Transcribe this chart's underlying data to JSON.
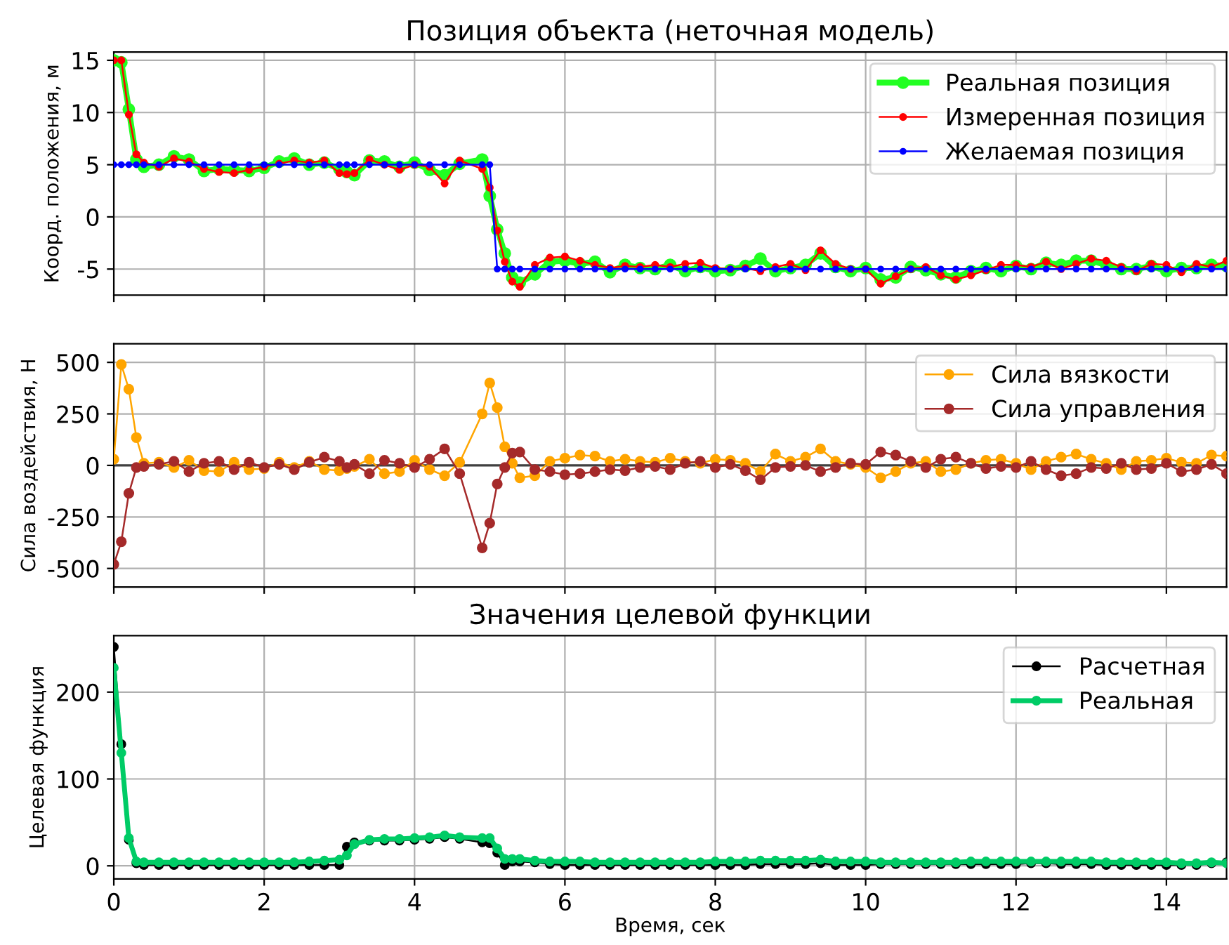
{
  "chart_data": [
    {
      "type": "line",
      "title": "Позиция объекта (неточная модель)",
      "ylabel": "Коорд. положения, м",
      "x": [
        0,
        0.1,
        0.2,
        0.3,
        0.4,
        0.6,
        0.8,
        1.0,
        1.2,
        1.4,
        1.6,
        1.8,
        2.0,
        2.2,
        2.4,
        2.6,
        2.8,
        3.0,
        3.1,
        3.2,
        3.4,
        3.6,
        3.8,
        4.0,
        4.2,
        4.4,
        4.6,
        4.9,
        5.0,
        5.1,
        5.2,
        5.3,
        5.4,
        5.6,
        5.8,
        6.0,
        6.2,
        6.4,
        6.6,
        6.8,
        7.0,
        7.2,
        7.4,
        7.6,
        7.8,
        8.0,
        8.2,
        8.4,
        8.6,
        8.8,
        9.0,
        9.2,
        9.4,
        9.6,
        9.8,
        10.0,
        10.2,
        10.4,
        10.6,
        10.8,
        11.0,
        11.2,
        11.4,
        11.6,
        11.8,
        12.0,
        12.2,
        12.4,
        12.6,
        12.8,
        13.0,
        13.2,
        13.4,
        13.6,
        13.8,
        14.0,
        14.2,
        14.4,
        14.6,
        14.8
      ],
      "series": [
        {
          "name": "Реальная позиция",
          "color": "#22ff22",
          "values": [
            15,
            14.8,
            10.3,
            5.5,
            4.8,
            5.0,
            5.8,
            5.5,
            4.4,
            4.6,
            4.5,
            4.4,
            4.7,
            5.3,
            5.6,
            5.0,
            5.2,
            4.6,
            4.3,
            4.0,
            5.4,
            5.3,
            4.8,
            5.2,
            4.5,
            4.0,
            5.1,
            5.5,
            2.0,
            -1.2,
            -3.5,
            -5.8,
            -6.3,
            -5.5,
            -4.3,
            -4.2,
            -4.5,
            -4.3,
            -5.3,
            -4.6,
            -4.9,
            -5.0,
            -4.6,
            -5.2,
            -4.8,
            -5.2,
            -5.1,
            -4.7,
            -4.0,
            -5.2,
            -4.9,
            -4.6,
            -3.5,
            -4.8,
            -5.2,
            -4.9,
            -6.0,
            -5.8,
            -4.8,
            -5.1,
            -5.5,
            -5.8,
            -5.2,
            -4.9,
            -5.2,
            -4.7,
            -5.0,
            -4.4,
            -4.6,
            -4.2,
            -4.2,
            -4.6,
            -5.0,
            -5.0,
            -4.7,
            -5.2,
            -4.9,
            -4.9,
            -4.6,
            -4.7
          ]
        },
        {
          "name": "Измеренная позиция",
          "color": "#ff0000",
          "values": [
            15,
            15,
            9.8,
            6,
            5.2,
            4.8,
            5.6,
            5.3,
            4.6,
            4.3,
            4.2,
            4.5,
            4.8,
            5.1,
            5.4,
            5.2,
            5.4,
            4.2,
            4.1,
            4.2,
            5.5,
            5.0,
            4.5,
            5.0,
            4.8,
            3.2,
            5.4,
            4.6,
            2.8,
            -1.3,
            -4.3,
            -6.2,
            -6.7,
            -4.6,
            -3.9,
            -3.8,
            -4.2,
            -4.6,
            -4.9,
            -4.7,
            -4.8,
            -4.6,
            -4.8,
            -4.5,
            -4.4,
            -4.9,
            -5.0,
            -4.9,
            -5.2,
            -4.8,
            -4.5,
            -5.1,
            -3.2,
            -4.5,
            -5.0,
            -5.0,
            -6.4,
            -5.7,
            -5.0,
            -4.8,
            -5.6,
            -6.0,
            -5.6,
            -5.1,
            -4.6,
            -4.6,
            -4.8,
            -4.3,
            -5.0,
            -4.5,
            -4.0,
            -4.2,
            -4.8,
            -5.2,
            -4.5,
            -4.6,
            -5.3,
            -4.5,
            -4.8,
            -4.2
          ]
        },
        {
          "name": "Желаемая позиция",
          "color": "#0000ff",
          "values": [
            5,
            5,
            5,
            5,
            5,
            5,
            5,
            5,
            5,
            5,
            5,
            5,
            5,
            5,
            5,
            5,
            5,
            5,
            5,
            5,
            5,
            5,
            5,
            5,
            5,
            5,
            5,
            5,
            5,
            -5,
            -5,
            -5,
            -5,
            -5,
            -5,
            -5,
            -5,
            -5,
            -5,
            -5,
            -5,
            -5,
            -5,
            -5,
            -5,
            -5,
            -5,
            -5,
            -5,
            -5,
            -5,
            -5,
            -5,
            -5,
            -5,
            -5,
            -5,
            -5,
            -5,
            -5,
            -5,
            -5,
            -5,
            -5,
            -5,
            -5,
            -5,
            -5,
            -5,
            -5,
            -5,
            -5,
            -5,
            -5,
            -5,
            -5,
            -5,
            -5,
            -5,
            -5
          ]
        }
      ],
      "xlim": [
        0,
        14.8
      ],
      "xticks": [
        0,
        2,
        4,
        6,
        8,
        10,
        12,
        14
      ],
      "ylim": [
        -7.5,
        15.8
      ],
      "yticks": [
        -5,
        0,
        5,
        10,
        15
      ],
      "tick_labels": "y",
      "grid": true,
      "legend": "top right",
      "marker": "circle",
      "line_style": "solid"
    },
    {
      "type": "line",
      "ylabel": "Сила воздействия, Н",
      "x": [
        0,
        0.1,
        0.2,
        0.3,
        0.4,
        0.6,
        0.8,
        1.0,
        1.2,
        1.4,
        1.6,
        1.8,
        2.0,
        2.2,
        2.4,
        2.6,
        2.8,
        3.0,
        3.1,
        3.2,
        3.4,
        3.6,
        3.8,
        4.0,
        4.2,
        4.4,
        4.6,
        4.9,
        5.0,
        5.1,
        5.2,
        5.3,
        5.4,
        5.6,
        5.8,
        6.0,
        6.2,
        6.4,
        6.6,
        6.8,
        7.0,
        7.2,
        7.4,
        7.6,
        7.8,
        8.0,
        8.2,
        8.4,
        8.6,
        8.8,
        9.0,
        9.2,
        9.4,
        9.6,
        9.8,
        10.0,
        10.2,
        10.4,
        10.6,
        10.8,
        11.0,
        11.2,
        11.4,
        11.6,
        11.8,
        12.0,
        12.2,
        12.4,
        12.6,
        12.8,
        13.0,
        13.2,
        13.4,
        13.6,
        13.8,
        14.0,
        14.2,
        14.4,
        14.6,
        14.8
      ],
      "series": [
        {
          "name": "Сила вязкости",
          "color": "#ffa500",
          "values": [
            30,
            490,
            370,
            135,
            10,
            15,
            -10,
            25,
            -25,
            -30,
            15,
            -20,
            -15,
            15,
            -10,
            20,
            -20,
            -25,
            -15,
            -5,
            30,
            -40,
            -30,
            25,
            -20,
            -50,
            15,
            250,
            400,
            280,
            90,
            10,
            -60,
            -50,
            20,
            35,
            50,
            45,
            20,
            30,
            20,
            15,
            35,
            20,
            10,
            30,
            25,
            10,
            -30,
            55,
            20,
            40,
            80,
            20,
            5,
            -10,
            -60,
            -30,
            10,
            20,
            -30,
            -20,
            10,
            25,
            30,
            10,
            -20,
            20,
            40,
            55,
            30,
            10,
            -20,
            20,
            25,
            35,
            15,
            10,
            50,
            45
          ]
        },
        {
          "name": "Сила управления",
          "color": "#a52a2a",
          "values": [
            -480,
            -370,
            -135,
            -10,
            -5,
            5,
            20,
            -30,
            10,
            20,
            -20,
            15,
            -10,
            5,
            -20,
            15,
            40,
            20,
            -10,
            5,
            -40,
            25,
            10,
            -10,
            30,
            80,
            -40,
            -400,
            -280,
            -90,
            -10,
            60,
            65,
            -20,
            -30,
            -45,
            -40,
            -30,
            -20,
            -25,
            -10,
            -5,
            -20,
            10,
            20,
            -10,
            5,
            -25,
            -70,
            -10,
            -5,
            0,
            -30,
            -10,
            10,
            5,
            65,
            50,
            20,
            -10,
            30,
            40,
            10,
            -15,
            -5,
            -10,
            20,
            -20,
            -50,
            -40,
            -10,
            -15,
            10,
            -20,
            -15,
            10,
            -30,
            -20,
            5,
            -40
          ]
        }
      ],
      "ref_lines": [
        {
          "axis": "y",
          "value": 0,
          "color": "#404040"
        }
      ],
      "xlim": [
        0,
        14.8
      ],
      "xticks": [
        0,
        2,
        4,
        6,
        8,
        10,
        12,
        14
      ],
      "ylim": [
        -590,
        590
      ],
      "yticks": [
        -500,
        -250,
        0,
        250,
        500
      ],
      "tick_labels": "y",
      "grid": true,
      "legend": "top right",
      "marker": "circle",
      "line_style": "solid"
    },
    {
      "type": "line",
      "title": "Значения целевой функции",
      "xlabel": "Время, сек",
      "ylabel": "Целевая функция",
      "x": [
        0,
        0.1,
        0.2,
        0.3,
        0.4,
        0.6,
        0.8,
        1.0,
        1.2,
        1.4,
        1.6,
        1.8,
        2.0,
        2.2,
        2.4,
        2.6,
        2.8,
        3.0,
        3.1,
        3.2,
        3.4,
        3.6,
        3.8,
        4.0,
        4.2,
        4.4,
        4.6,
        4.9,
        5.0,
        5.1,
        5.2,
        5.3,
        5.4,
        5.6,
        5.8,
        6.0,
        6.2,
        6.4,
        6.6,
        6.8,
        7.0,
        7.2,
        7.4,
        7.6,
        7.8,
        8.0,
        8.2,
        8.4,
        8.6,
        8.8,
        9.0,
        9.2,
        9.4,
        9.6,
        9.8,
        10.0,
        10.2,
        10.4,
        10.6,
        10.8,
        11.0,
        11.2,
        11.4,
        11.6,
        11.8,
        12.0,
        12.2,
        12.4,
        12.6,
        12.8,
        13.0,
        13.2,
        13.4,
        13.6,
        13.8,
        14.0,
        14.2,
        14.4,
        14.6,
        14.8
      ],
      "series": [
        {
          "name": "Расчетная",
          "color": "#000000",
          "values": [
            252,
            140,
            30,
            3,
            1,
            1,
            1,
            1,
            1,
            1,
            1,
            1,
            1,
            1,
            1,
            1,
            1,
            1,
            22,
            27,
            29,
            29,
            29,
            30,
            31,
            33,
            31,
            27,
            26,
            15,
            1,
            5,
            5,
            4,
            2,
            1,
            1,
            1,
            1,
            1,
            1,
            1,
            1,
            1,
            1,
            1,
            1,
            1,
            2,
            2,
            2,
            2,
            3,
            1,
            1,
            1,
            2,
            2,
            2,
            2,
            2,
            2,
            2,
            2,
            2,
            2,
            3,
            3,
            2,
            2,
            2,
            1,
            1,
            1,
            1,
            1,
            1,
            1,
            3,
            4
          ]
        },
        {
          "name": "Реальная",
          "color": "#00cc66",
          "values": [
            228,
            130,
            32,
            5,
            4,
            4,
            4,
            4,
            4,
            4,
            4,
            4,
            4,
            4,
            4,
            5,
            6,
            7,
            12,
            25,
            30,
            31,
            31,
            32,
            33,
            35,
            33,
            32,
            32,
            20,
            8,
            8,
            8,
            6,
            5,
            5,
            5,
            4,
            4,
            4,
            4,
            4,
            4,
            4,
            4,
            5,
            5,
            5,
            6,
            6,
            6,
            6,
            7,
            5,
            5,
            5,
            4,
            4,
            4,
            4,
            4,
            4,
            5,
            5,
            5,
            5,
            5,
            5,
            5,
            5,
            5,
            4,
            4,
            4,
            4,
            4,
            3,
            3,
            4,
            3
          ]
        }
      ],
      "xlim": [
        0,
        14.8
      ],
      "xticks": [
        0,
        2,
        4,
        6,
        8,
        10,
        12,
        14
      ],
      "ylim": [
        -15,
        265
      ],
      "yticks": [
        0,
        100,
        200
      ],
      "grid": true,
      "legend": "top right",
      "marker": "circle",
      "line_style": "solid"
    }
  ]
}
